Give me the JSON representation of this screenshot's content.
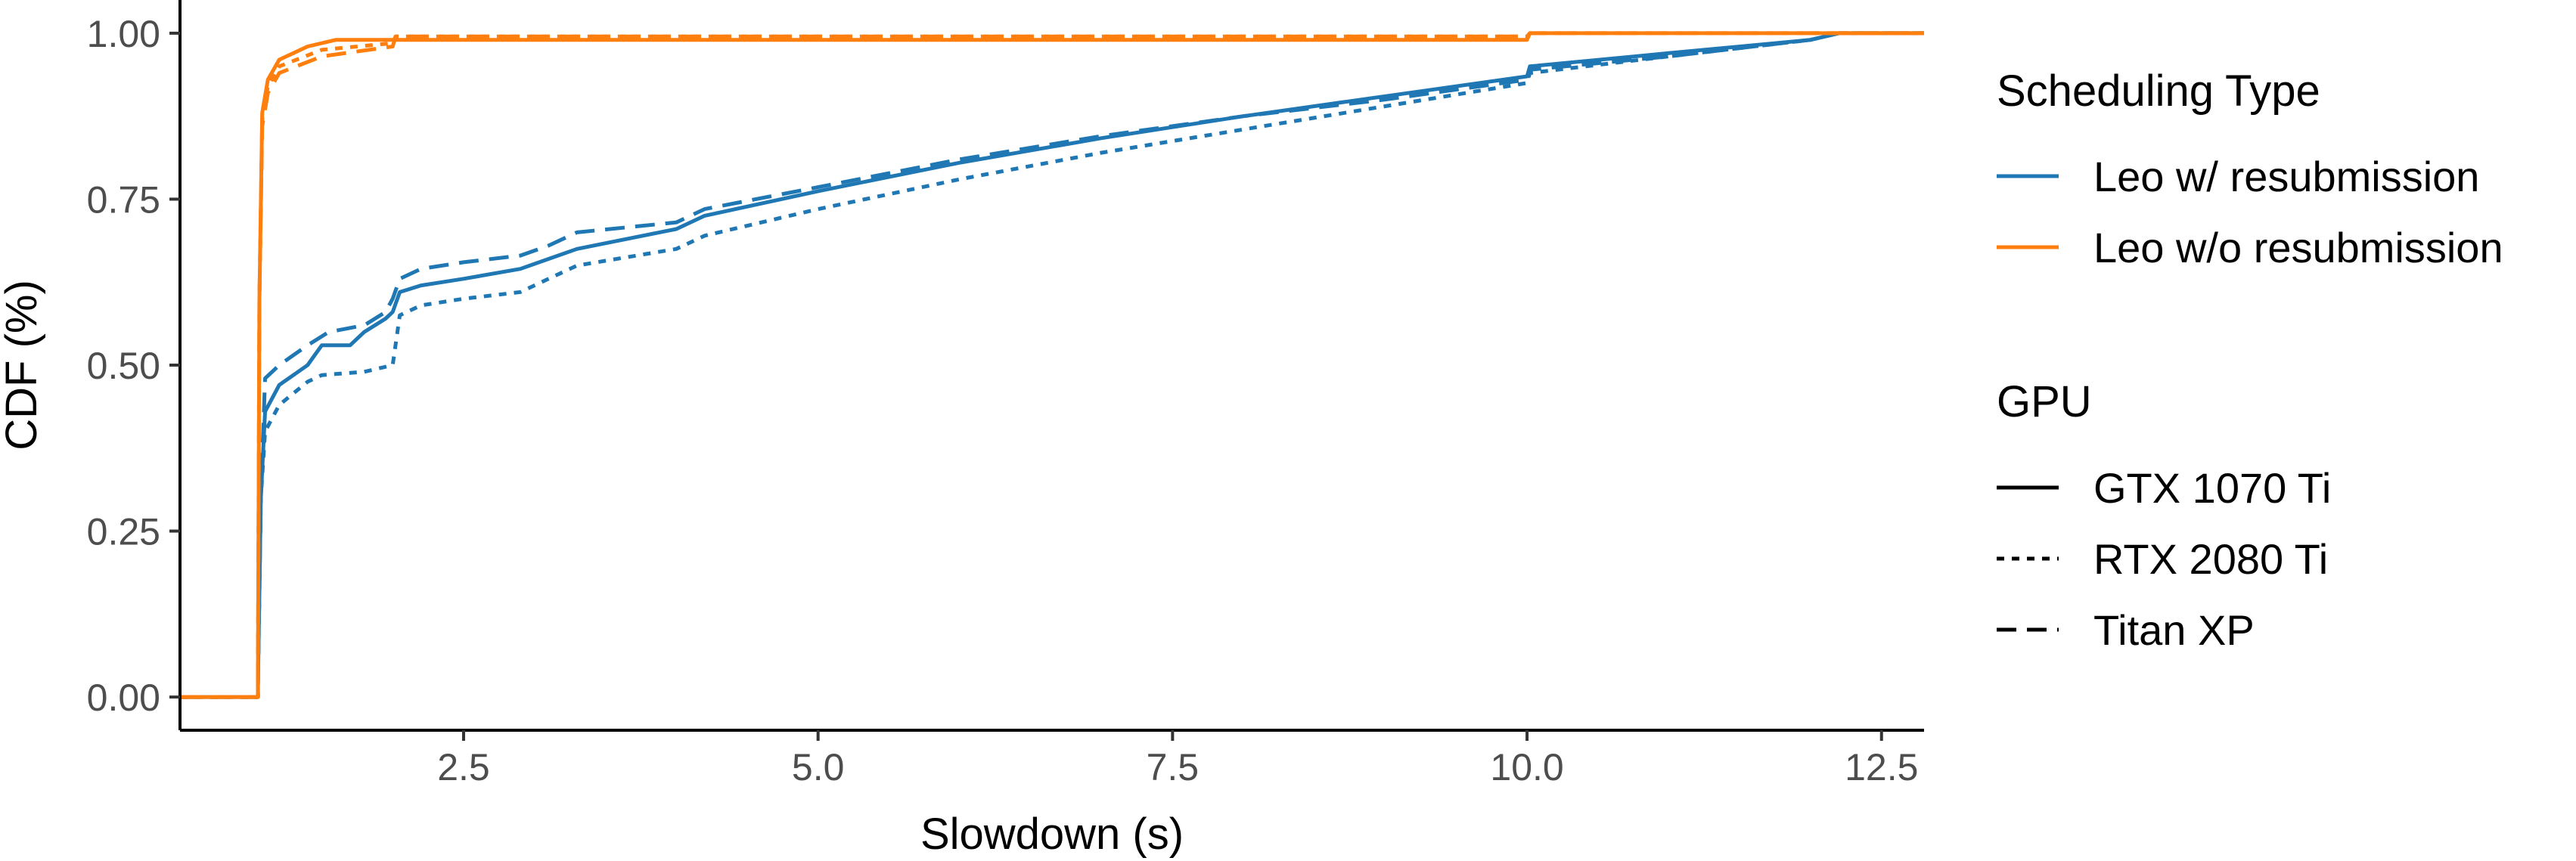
{
  "chart_data": {
    "type": "line",
    "title": "",
    "xlabel": "Slowdown (s)",
    "ylabel": "CDF (%)",
    "xlim": [
      0.5,
      12.8
    ],
    "ylim": [
      -0.05,
      1.05
    ],
    "x_ticks": [
      2.5,
      5.0,
      7.5,
      10.0,
      12.5
    ],
    "x_tick_labels": [
      "2.5",
      "5.0",
      "7.5",
      "10.0",
      "12.5"
    ],
    "y_ticks": [
      0.0,
      0.25,
      0.5,
      0.75,
      1.0
    ],
    "y_tick_labels": [
      "0.00",
      "0.25",
      "0.50",
      "0.75",
      "1.00"
    ],
    "grid": false,
    "legend_placement": "right",
    "legends": [
      {
        "title": "Scheduling Type",
        "entries": [
          {
            "label": "Leo w/ resubmission",
            "color": "#1f77b4",
            "dash": "solid"
          },
          {
            "label": "Leo w/o resubmission",
            "color": "#ff7f0e",
            "dash": "solid"
          }
        ]
      },
      {
        "title": "GPU",
        "entries": [
          {
            "label": "GTX 1070 Ti",
            "color": "#000000",
            "dash": "solid"
          },
          {
            "label": "RTX 2080 Ti",
            "color": "#000000",
            "dash": "dotted"
          },
          {
            "label": "Titan XP",
            "color": "#000000",
            "dash": "dashed"
          }
        ]
      }
    ],
    "series": [
      {
        "type": "Leo w/ resubmission",
        "gpu": "GTX 1070 Ti",
        "color": "#1f77b4",
        "dash": "solid",
        "points": [
          [
            0.5,
            0
          ],
          [
            1.05,
            0
          ],
          [
            1.05,
            0.02
          ],
          [
            1.07,
            0.3
          ],
          [
            1.1,
            0.43
          ],
          [
            1.2,
            0.47
          ],
          [
            1.4,
            0.5
          ],
          [
            1.5,
            0.53
          ],
          [
            1.7,
            0.53
          ],
          [
            1.8,
            0.55
          ],
          [
            1.95,
            0.57
          ],
          [
            2.0,
            0.58
          ],
          [
            2.05,
            0.61
          ],
          [
            2.2,
            0.62
          ],
          [
            2.5,
            0.63
          ],
          [
            2.9,
            0.645
          ],
          [
            3.1,
            0.66
          ],
          [
            3.3,
            0.675
          ],
          [
            4.0,
            0.705
          ],
          [
            4.2,
            0.725
          ],
          [
            5.0,
            0.762
          ],
          [
            6.0,
            0.805
          ],
          [
            7.0,
            0.842
          ],
          [
            8.0,
            0.875
          ],
          [
            9.0,
            0.905
          ],
          [
            10.0,
            0.935
          ],
          [
            10.02,
            0.95
          ],
          [
            11.0,
            0.97
          ],
          [
            12.0,
            0.99
          ],
          [
            12.2,
            1.0
          ],
          [
            12.8,
            1.0
          ]
        ]
      },
      {
        "type": "Leo w/ resubmission",
        "gpu": "RTX 2080 Ti",
        "color": "#1f77b4",
        "dash": "dotted",
        "points": [
          [
            0.5,
            0
          ],
          [
            1.05,
            0
          ],
          [
            1.05,
            0.02
          ],
          [
            1.07,
            0.3
          ],
          [
            1.1,
            0.4
          ],
          [
            1.2,
            0.44
          ],
          [
            1.4,
            0.475
          ],
          [
            1.5,
            0.485
          ],
          [
            1.8,
            0.49
          ],
          [
            2.0,
            0.5
          ],
          [
            2.05,
            0.575
          ],
          [
            2.2,
            0.59
          ],
          [
            2.5,
            0.6
          ],
          [
            2.9,
            0.61
          ],
          [
            3.1,
            0.63
          ],
          [
            3.3,
            0.65
          ],
          [
            4.0,
            0.675
          ],
          [
            4.2,
            0.695
          ],
          [
            5.0,
            0.735
          ],
          [
            6.0,
            0.78
          ],
          [
            7.0,
            0.82
          ],
          [
            8.0,
            0.855
          ],
          [
            9.0,
            0.89
          ],
          [
            10.0,
            0.925
          ],
          [
            10.02,
            0.94
          ],
          [
            11.0,
            0.965
          ],
          [
            12.0,
            0.99
          ],
          [
            12.2,
            1.0
          ],
          [
            12.8,
            1.0
          ]
        ]
      },
      {
        "type": "Leo w/ resubmission",
        "gpu": "Titan XP",
        "color": "#1f77b4",
        "dash": "dashed",
        "points": [
          [
            0.5,
            0
          ],
          [
            1.05,
            0
          ],
          [
            1.05,
            0.02
          ],
          [
            1.07,
            0.3
          ],
          [
            1.1,
            0.48
          ],
          [
            1.2,
            0.5
          ],
          [
            1.4,
            0.53
          ],
          [
            1.55,
            0.55
          ],
          [
            1.8,
            0.56
          ],
          [
            1.95,
            0.58
          ],
          [
            2.0,
            0.6
          ],
          [
            2.05,
            0.63
          ],
          [
            2.2,
            0.645
          ],
          [
            2.5,
            0.655
          ],
          [
            2.9,
            0.665
          ],
          [
            3.1,
            0.68
          ],
          [
            3.3,
            0.7
          ],
          [
            4.0,
            0.715
          ],
          [
            4.2,
            0.735
          ],
          [
            5.0,
            0.768
          ],
          [
            6.0,
            0.81
          ],
          [
            7.0,
            0.845
          ],
          [
            8.0,
            0.875
          ],
          [
            9.0,
            0.9
          ],
          [
            10.0,
            0.93
          ],
          [
            10.02,
            0.945
          ],
          [
            11.0,
            0.965
          ],
          [
            12.0,
            0.99
          ],
          [
            12.2,
            1.0
          ],
          [
            12.8,
            1.0
          ]
        ]
      },
      {
        "type": "Leo w/o resubmission",
        "gpu": "GTX 1070 Ti",
        "color": "#ff7f0e",
        "dash": "solid",
        "points": [
          [
            0.5,
            0
          ],
          [
            1.05,
            0
          ],
          [
            1.05,
            0.05
          ],
          [
            1.06,
            0.6
          ],
          [
            1.08,
            0.88
          ],
          [
            1.12,
            0.93
          ],
          [
            1.2,
            0.96
          ],
          [
            1.4,
            0.98
          ],
          [
            1.6,
            0.99
          ],
          [
            2.0,
            0.99
          ],
          [
            10.0,
            0.99
          ],
          [
            10.02,
            1.0
          ],
          [
            12.8,
            1.0
          ]
        ]
      },
      {
        "type": "Leo w/o resubmission",
        "gpu": "RTX 2080 Ti",
        "color": "#ff7f0e",
        "dash": "dotted",
        "points": [
          [
            0.5,
            0
          ],
          [
            1.05,
            0
          ],
          [
            1.05,
            0.05
          ],
          [
            1.06,
            0.6
          ],
          [
            1.08,
            0.87
          ],
          [
            1.12,
            0.92
          ],
          [
            1.2,
            0.95
          ],
          [
            1.5,
            0.975
          ],
          [
            2.0,
            0.985
          ],
          [
            2.02,
            0.995
          ],
          [
            10.0,
            0.995
          ],
          [
            10.02,
            1.0
          ],
          [
            12.8,
            1.0
          ]
        ]
      },
      {
        "type": "Leo w/o resubmission",
        "gpu": "Titan XP",
        "color": "#ff7f0e",
        "dash": "dashed",
        "points": [
          [
            0.5,
            0
          ],
          [
            1.05,
            0
          ],
          [
            1.05,
            0.05
          ],
          [
            1.06,
            0.6
          ],
          [
            1.08,
            0.86
          ],
          [
            1.12,
            0.91
          ],
          [
            1.2,
            0.94
          ],
          [
            1.5,
            0.965
          ],
          [
            2.0,
            0.98
          ],
          [
            2.02,
            0.995
          ],
          [
            10.0,
            0.995
          ],
          [
            10.02,
            1.0
          ],
          [
            12.8,
            1.0
          ]
        ]
      }
    ]
  }
}
